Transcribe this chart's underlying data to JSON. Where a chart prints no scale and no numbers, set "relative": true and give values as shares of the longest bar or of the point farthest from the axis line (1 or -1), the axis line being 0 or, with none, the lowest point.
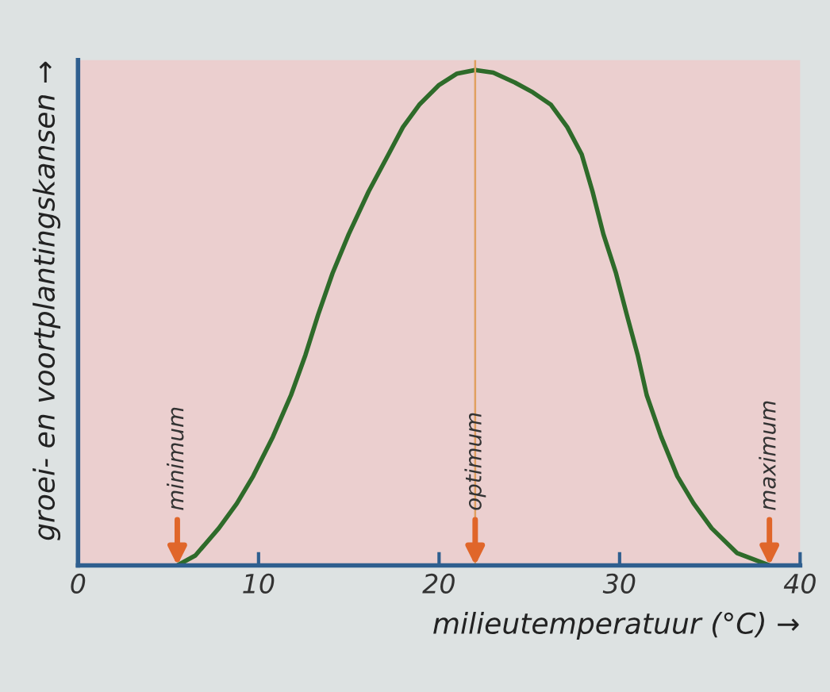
{
  "chart_data": {
    "type": "line",
    "relative": true,
    "xlabel": "milieutemperatuur (°C) →",
    "ylabel": "groei- en voortplantingskansen →",
    "xlim": [
      0,
      40
    ],
    "xticks": [
      0,
      10,
      20,
      30,
      40
    ],
    "tick_labels": "x",
    "grid": false,
    "marker": "none",
    "line_style": "solid",
    "series": [
      {
        "color": "#2e6b2a",
        "x": [
          5.5,
          6.5,
          7.8,
          8.8,
          9.7,
          10.8,
          11.8,
          12.6,
          13.3,
          14.1,
          15.0,
          16.1,
          17.2,
          18.0,
          18.9,
          20.0,
          21.0,
          22,
          23,
          24.2,
          25.2,
          26.2,
          27.1,
          27.9,
          28.5,
          29.1,
          29.8,
          30.4,
          31.0,
          31.5,
          32.3,
          33.2,
          34.1,
          35.1,
          36.5,
          38.3
        ],
        "values": [
          0,
          0.02,
          0.075,
          0.125,
          0.18,
          0.26,
          0.344,
          0.425,
          0.506,
          0.59,
          0.669,
          0.755,
          0.83,
          0.885,
          0.93,
          0.97,
          0.993,
          1,
          0.995,
          0.975,
          0.955,
          0.93,
          0.885,
          0.83,
          0.755,
          0.669,
          0.59,
          0.506,
          0.425,
          0.344,
          0.26,
          0.18,
          0.125,
          0.075,
          0.025,
          0
        ]
      }
    ],
    "ref_lines": [
      {
        "axis": "x",
        "value": 22,
        "color": "#e0a060"
      }
    ],
    "annotations": [
      {
        "text": "minimum",
        "x": 5.5,
        "y": 0
      },
      {
        "text": "optimum",
        "x": 22,
        "y": 0
      },
      {
        "text": "maximum",
        "x": 38.3,
        "y": 0
      }
    ]
  }
}
